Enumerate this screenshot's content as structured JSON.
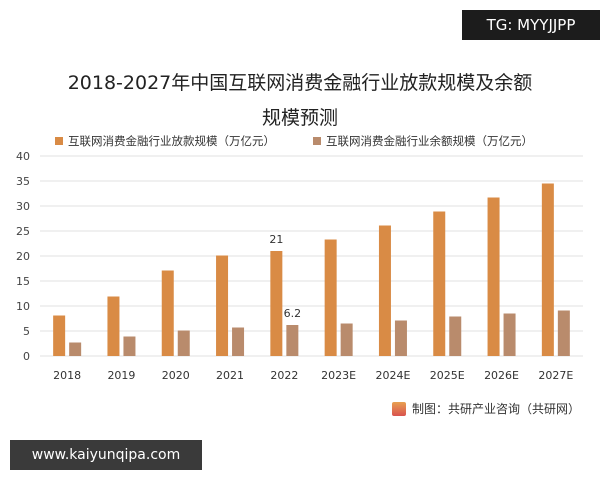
{
  "watermark_top": "TG: MYYJJPP",
  "watermark_bottom": "www.kaiyunqipa.com",
  "source": "制图：共研产业咨询（共研网）",
  "chart_data": {
    "type": "bar",
    "title_line1": "2018-2027年中国互联网消费金融行业放款规模及余额",
    "title_line2": "规模预测",
    "categories": [
      "2018",
      "2019",
      "2020",
      "2021",
      "2022",
      "2023E",
      "2024E",
      "2025E",
      "2026E",
      "2027E"
    ],
    "series": [
      {
        "name": "互联网消费金融行业放款规模（万亿元）",
        "color": "#d98b45",
        "values": [
          8.1,
          11.9,
          17.1,
          20.1,
          21,
          23.3,
          26.1,
          28.9,
          31.7,
          34.5
        ]
      },
      {
        "name": "互联网消费金融行业余额规模（万亿元）",
        "color": "#b98b6c",
        "values": [
          2.7,
          3.9,
          5.1,
          5.7,
          6.2,
          6.5,
          7.1,
          7.9,
          8.5,
          9.1
        ]
      }
    ],
    "data_labels": [
      {
        "series": 0,
        "index": 4,
        "text": "21"
      },
      {
        "series": 1,
        "index": 4,
        "text": "6.2"
      }
    ],
    "ylim": [
      0,
      40
    ],
    "yticks": [
      0,
      5,
      10,
      15,
      20,
      25,
      30,
      35,
      40
    ],
    "grid": true,
    "legend": "top"
  }
}
